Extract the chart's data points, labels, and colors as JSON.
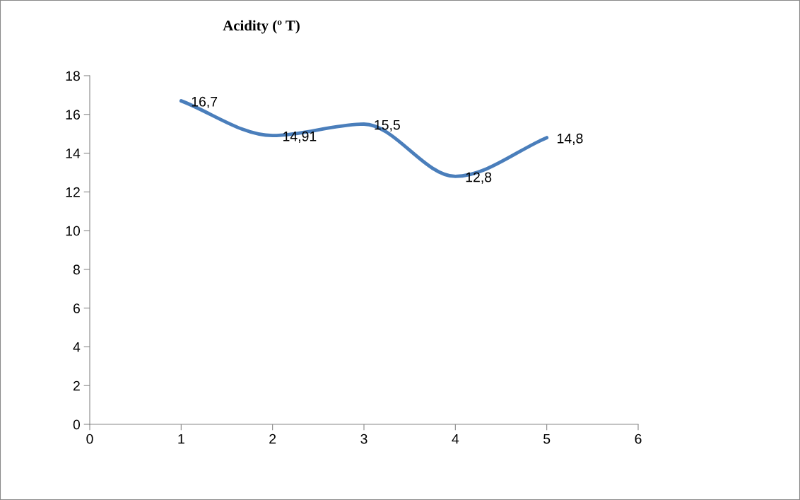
{
  "chart_data": {
    "type": "line",
    "title": "Acidity (º T)",
    "x": [
      1,
      2,
      3,
      4,
      5
    ],
    "series": [
      {
        "color": "#4a7ebb",
        "values": [
          16.7,
          14.91,
          15.5,
          12.8,
          14.8
        ],
        "value_labels": [
          "16,7",
          "14,91",
          "15,5",
          "12,8",
          "14,8"
        ]
      }
    ],
    "xlim": [
      0,
      6
    ],
    "xticks": [
      0,
      1,
      2,
      3,
      4,
      5,
      6
    ],
    "ylim": [
      0,
      18
    ],
    "yticks": [
      0,
      2,
      4,
      6,
      8,
      10,
      12,
      14,
      16,
      18
    ],
    "grid": false,
    "marker": "none",
    "line_style": "solid"
  }
}
